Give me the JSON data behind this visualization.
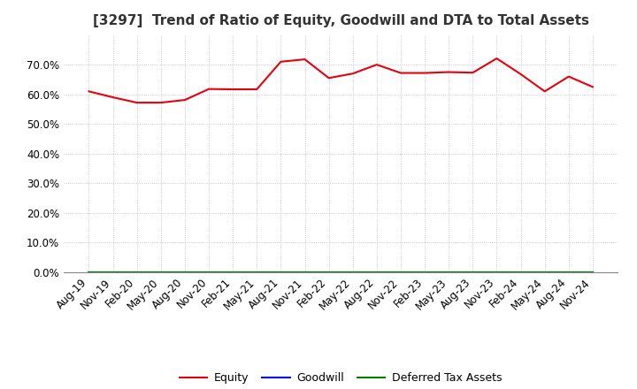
{
  "title": "[3297]  Trend of Ratio of Equity, Goodwill and DTA to Total Assets",
  "x_labels": [
    "Aug-19",
    "Nov-19",
    "Feb-20",
    "May-20",
    "Aug-20",
    "Nov-20",
    "Feb-21",
    "May-21",
    "Aug-21",
    "Nov-21",
    "Feb-22",
    "May-22",
    "Aug-22",
    "Nov-22",
    "Feb-23",
    "May-23",
    "Aug-23",
    "Nov-23",
    "Feb-24",
    "May-24",
    "Aug-24",
    "Nov-24"
  ],
  "equity": [
    0.61,
    0.59,
    0.572,
    0.572,
    0.581,
    0.618,
    0.617,
    0.617,
    0.71,
    0.718,
    0.655,
    0.67,
    0.7,
    0.672,
    0.672,
    0.675,
    0.673,
    0.721,
    0.668,
    0.61,
    0.66,
    0.625
  ],
  "goodwill": [
    0.0,
    0.0,
    0.0,
    0.0,
    0.0,
    0.0,
    0.0,
    0.0,
    0.0,
    0.0,
    0.0,
    0.0,
    0.0,
    0.0,
    0.0,
    0.0,
    0.0,
    0.0,
    0.0,
    0.0,
    0.0,
    0.0
  ],
  "dta": [
    0.0,
    0.0,
    0.0,
    0.0,
    0.0,
    0.0,
    0.0,
    0.0,
    0.0,
    0.0,
    0.0,
    0.0,
    0.0,
    0.0,
    0.0,
    0.0,
    0.0,
    0.0,
    0.0,
    0.0,
    0.0,
    0.0
  ],
  "equity_color": "#e8000d",
  "goodwill_color": "#0000ff",
  "dta_color": "#008000",
  "background_color": "#ffffff",
  "plot_bg_color": "#ffffff",
  "grid_color": "#aaaaaa",
  "ylim_min": 0.0,
  "ylim_max": 0.8,
  "yticks": [
    0.0,
    0.1,
    0.2,
    0.3,
    0.4,
    0.5,
    0.6,
    0.7
  ],
  "title_fontsize": 11,
  "tick_fontsize": 8.5,
  "legend_labels": [
    "Equity",
    "Goodwill",
    "Deferred Tax Assets"
  ],
  "line_width": 1.5
}
